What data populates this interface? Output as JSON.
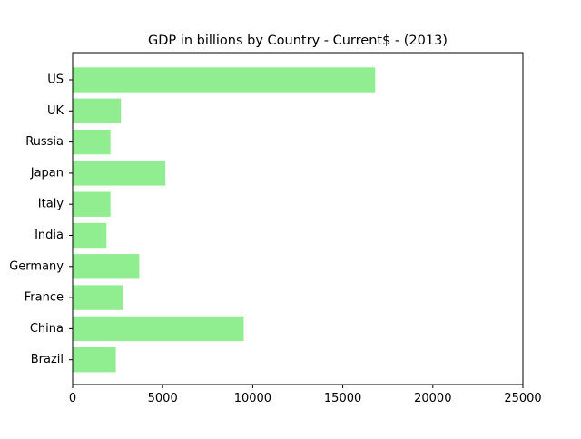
{
  "chart_data": {
    "type": "bar",
    "orientation": "horizontal",
    "title": "GDP in billions by Country - Current$ - (2013)",
    "xlabel": "",
    "ylabel": "",
    "categories": [
      "US",
      "UK",
      "Russia",
      "Japan",
      "Italy",
      "India",
      "Germany",
      "France",
      "China",
      "Brazil"
    ],
    "values": [
      16800,
      2680,
      2100,
      5150,
      2100,
      1880,
      3700,
      2800,
      9500,
      2400
    ],
    "xlim": [
      0,
      25000
    ],
    "xticks": [
      0,
      5000,
      10000,
      15000,
      20000,
      25000
    ],
    "grid": false,
    "legend": "none",
    "bar_color": "#90ee90"
  }
}
